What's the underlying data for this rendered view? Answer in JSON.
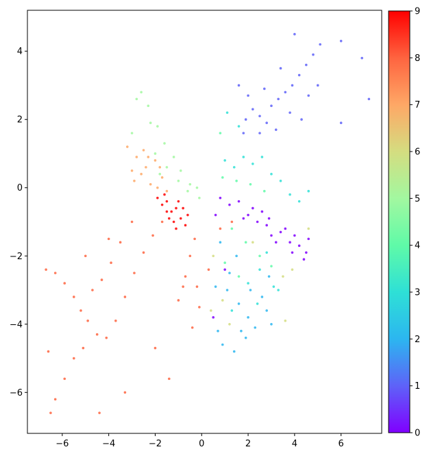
{
  "chart_data": {
    "type": "scatter",
    "title": "",
    "xlabel": "",
    "ylabel": "",
    "xlim": [
      -7.5,
      7.75
    ],
    "ylim": [
      -7.2,
      5.2
    ],
    "xticks": [
      -6,
      -4,
      -2,
      0,
      2,
      4,
      6
    ],
    "yticks": [
      -6,
      -4,
      -2,
      0,
      2,
      4
    ],
    "xtick_labels": [
      "−6",
      "−4",
      "−2",
      "0",
      "2",
      "4",
      "6"
    ],
    "ytick_labels": [
      "−6",
      "−4",
      "−2",
      "0",
      "2",
      "4"
    ],
    "grid": false,
    "colormap": "rainbow",
    "colorbar": {
      "range": [
        0,
        9
      ],
      "ticks": [
        0,
        1,
        2,
        3,
        4,
        5,
        6,
        7,
        8,
        9
      ],
      "tick_labels": [
        "0",
        "1",
        "2",
        "3",
        "4",
        "5",
        "6",
        "7",
        "8",
        "9"
      ]
    },
    "clusters": [
      {
        "class": 0,
        "color": "#8000ff",
        "points": [
          [
            0.8,
            -0.3
          ],
          [
            1.2,
            -0.5
          ],
          [
            1.6,
            -0.4
          ],
          [
            2.0,
            -0.8
          ],
          [
            2.4,
            -1.0
          ],
          [
            2.8,
            -1.1
          ],
          [
            3.0,
            -1.4
          ],
          [
            3.4,
            -1.3
          ],
          [
            3.8,
            -1.6
          ],
          [
            4.2,
            -1.7
          ],
          [
            4.5,
            -1.9
          ],
          [
            3.6,
            -1.2
          ],
          [
            2.6,
            -0.7
          ],
          [
            1.8,
            -0.9
          ],
          [
            4.0,
            -1.4
          ],
          [
            4.6,
            -1.5
          ],
          [
            3.2,
            -1.6
          ],
          [
            2.2,
            -0.6
          ],
          [
            0.6,
            -0.8
          ],
          [
            1.0,
            -2.4
          ],
          [
            0.5,
            -3.8
          ],
          [
            4.4,
            -2.1
          ],
          [
            3.9,
            -1.9
          ],
          [
            2.9,
            -0.9
          ]
        ]
      },
      {
        "class": 1,
        "color": "#5e62f8",
        "points": [
          [
            1.9,
            2.0
          ],
          [
            2.2,
            2.3
          ],
          [
            2.5,
            2.1
          ],
          [
            2.8,
            1.9
          ],
          [
            3.0,
            2.4
          ],
          [
            3.3,
            2.6
          ],
          [
            3.6,
            2.8
          ],
          [
            3.9,
            3.0
          ],
          [
            4.2,
            3.3
          ],
          [
            4.5,
            3.6
          ],
          [
            4.8,
            3.9
          ],
          [
            5.1,
            4.2
          ],
          [
            4.0,
            4.5
          ],
          [
            3.4,
            3.5
          ],
          [
            2.7,
            2.9
          ],
          [
            2.0,
            2.7
          ],
          [
            1.8,
            1.6
          ],
          [
            3.2,
            1.7
          ],
          [
            4.6,
            2.7
          ],
          [
            5.0,
            3.0
          ],
          [
            2.5,
            1.6
          ],
          [
            3.8,
            2.2
          ],
          [
            6.0,
            4.3
          ],
          [
            7.2,
            2.6
          ],
          [
            6.9,
            3.8
          ],
          [
            6.0,
            1.9
          ],
          [
            1.6,
            3.0
          ],
          [
            4.3,
            2.0
          ]
        ]
      },
      {
        "class": 2,
        "color": "#2cb6f0",
        "points": [
          [
            0.8,
            -1.6
          ],
          [
            1.2,
            -2.5
          ],
          [
            1.6,
            -3.4
          ],
          [
            2.0,
            -3.8
          ],
          [
            2.3,
            -4.1
          ],
          [
            2.6,
            -3.2
          ],
          [
            3.0,
            -4.0
          ],
          [
            0.9,
            -4.6
          ],
          [
            1.4,
            -4.8
          ],
          [
            1.9,
            -4.4
          ],
          [
            0.6,
            -2.9
          ],
          [
            1.1,
            -3.0
          ],
          [
            2.8,
            -3.6
          ],
          [
            1.7,
            -4.2
          ],
          [
            1.5,
            -2.0
          ],
          [
            0.7,
            -4.2
          ],
          [
            2.1,
            -3.0
          ],
          [
            2.9,
            -2.6
          ]
        ]
      },
      {
        "class": 3,
        "color": "#2ee0d6",
        "points": [
          [
            1.0,
            0.8
          ],
          [
            1.4,
            0.6
          ],
          [
            1.8,
            0.9
          ],
          [
            2.2,
            0.7
          ],
          [
            2.6,
            0.9
          ],
          [
            3.0,
            0.4
          ],
          [
            3.4,
            0.2
          ],
          [
            3.8,
            -0.2
          ],
          [
            4.2,
            -0.4
          ],
          [
            4.6,
            -0.1
          ],
          [
            2.0,
            -2.8
          ],
          [
            2.5,
            -2.4
          ],
          [
            3.1,
            -2.9
          ],
          [
            1.3,
            -3.6
          ],
          [
            2.4,
            -3.4
          ],
          [
            3.3,
            -3.0
          ],
          [
            1.6,
            1.8
          ],
          [
            1.1,
            2.2
          ],
          [
            2.8,
            -1.9
          ]
        ]
      },
      {
        "class": 4,
        "color": "#5ffaa8",
        "points": [
          [
            0.9,
            0.3
          ],
          [
            1.5,
            0.2
          ],
          [
            2.1,
            0.1
          ],
          [
            2.7,
            -0.1
          ],
          [
            1.3,
            -1.2
          ],
          [
            1.9,
            -1.6
          ],
          [
            2.5,
            -2.0
          ],
          [
            3.0,
            -2.3
          ],
          [
            1.0,
            -2.2
          ],
          [
            1.6,
            -2.6
          ],
          [
            0.8,
            1.6
          ]
        ]
      },
      {
        "class": 5,
        "color": "#a2f8a0",
        "points": [
          [
            -2.8,
            2.6
          ],
          [
            -2.3,
            2.4
          ],
          [
            -1.9,
            1.8
          ],
          [
            -1.6,
            1.3
          ],
          [
            -1.2,
            0.9
          ],
          [
            -1.5,
            0.6
          ],
          [
            -0.9,
            0.5
          ],
          [
            -0.5,
            0.1
          ],
          [
            -0.2,
            0.0
          ],
          [
            -0.1,
            -0.3
          ],
          [
            -2.0,
            1.0
          ],
          [
            -1.0,
            0.2
          ],
          [
            -3.0,
            1.6
          ],
          [
            -2.6,
            2.8
          ],
          [
            -1.8,
            0.4
          ],
          [
            -0.6,
            -0.1
          ],
          [
            -2.2,
            1.9
          ]
        ]
      },
      {
        "class": 6,
        "color": "#d4dd80",
        "points": [
          [
            0.5,
            -2.0
          ],
          [
            0.9,
            -3.3
          ],
          [
            3.6,
            -3.9
          ],
          [
            3.9,
            -2.4
          ],
          [
            2.2,
            -1.6
          ],
          [
            4.6,
            -1.2
          ],
          [
            1.2,
            -4.0
          ],
          [
            0.4,
            -3.6
          ],
          [
            3.5,
            -2.6
          ]
        ]
      },
      {
        "class": 7,
        "color": "#fea866",
        "points": [
          [
            -3.2,
            1.2
          ],
          [
            -2.8,
            0.9
          ],
          [
            -2.4,
            0.6
          ],
          [
            -2.0,
            0.8
          ],
          [
            -1.7,
            0.3
          ],
          [
            -2.6,
            0.4
          ],
          [
            -2.2,
            0.1
          ],
          [
            -1.8,
            0.6
          ],
          [
            -3.0,
            0.5
          ],
          [
            -2.5,
            1.1
          ],
          [
            -1.9,
            0.0
          ],
          [
            -1.5,
            -0.1
          ],
          [
            -2.9,
            0.2
          ],
          [
            -2.3,
            0.9
          ]
        ]
      },
      {
        "class": 8,
        "color": "#fe6440",
        "points": [
          [
            -6.7,
            -2.4
          ],
          [
            -6.3,
            -2.5
          ],
          [
            -5.9,
            -2.8
          ],
          [
            -5.5,
            -3.2
          ],
          [
            -5.2,
            -3.6
          ],
          [
            -4.9,
            -3.9
          ],
          [
            -4.5,
            -4.3
          ],
          [
            -4.1,
            -4.4
          ],
          [
            -3.7,
            -3.9
          ],
          [
            -3.3,
            -3.2
          ],
          [
            -2.9,
            -2.5
          ],
          [
            -2.5,
            -1.9
          ],
          [
            -2.1,
            -1.4
          ],
          [
            -1.7,
            -1.0
          ],
          [
            -3.5,
            -1.6
          ],
          [
            -3.9,
            -2.2
          ],
          [
            -4.3,
            -2.7
          ],
          [
            -4.7,
            -3.0
          ],
          [
            -5.1,
            -4.7
          ],
          [
            -5.5,
            -5.0
          ],
          [
            -5.9,
            -5.6
          ],
          [
            -6.3,
            -6.2
          ],
          [
            -6.5,
            -6.6
          ],
          [
            -4.4,
            -6.6
          ],
          [
            -3.3,
            -6.0
          ],
          [
            -1.4,
            -5.6
          ],
          [
            -2.0,
            -4.7
          ],
          [
            -0.3,
            -1.5
          ],
          [
            -0.5,
            -2.0
          ],
          [
            -0.7,
            -2.6
          ],
          [
            -0.2,
            -2.9
          ],
          [
            0.3,
            -2.4
          ],
          [
            0.8,
            -1.2
          ],
          [
            1.3,
            -1.0
          ],
          [
            -0.4,
            -4.1
          ],
          [
            -1.0,
            -3.3
          ],
          [
            -5.0,
            -2.0
          ],
          [
            -4.0,
            -1.5
          ],
          [
            -6.6,
            -4.8
          ],
          [
            -3.0,
            -1.0
          ],
          [
            -0.8,
            -2.9
          ],
          [
            -0.1,
            -3.5
          ]
        ]
      },
      {
        "class": 9,
        "color": "#ff0000",
        "points": [
          [
            -1.9,
            -0.3
          ],
          [
            -1.7,
            -0.5
          ],
          [
            -1.5,
            -0.4
          ],
          [
            -1.3,
            -0.7
          ],
          [
            -1.1,
            -0.6
          ],
          [
            -0.9,
            -0.9
          ],
          [
            -0.7,
            -1.1
          ],
          [
            -1.4,
            -0.9
          ],
          [
            -1.2,
            -1.0
          ],
          [
            -1.6,
            -0.2
          ],
          [
            -1.0,
            -0.4
          ],
          [
            -0.8,
            -0.6
          ],
          [
            -1.5,
            -0.7
          ],
          [
            -1.1,
            -1.2
          ],
          [
            -0.6,
            -0.8
          ]
        ]
      }
    ]
  }
}
